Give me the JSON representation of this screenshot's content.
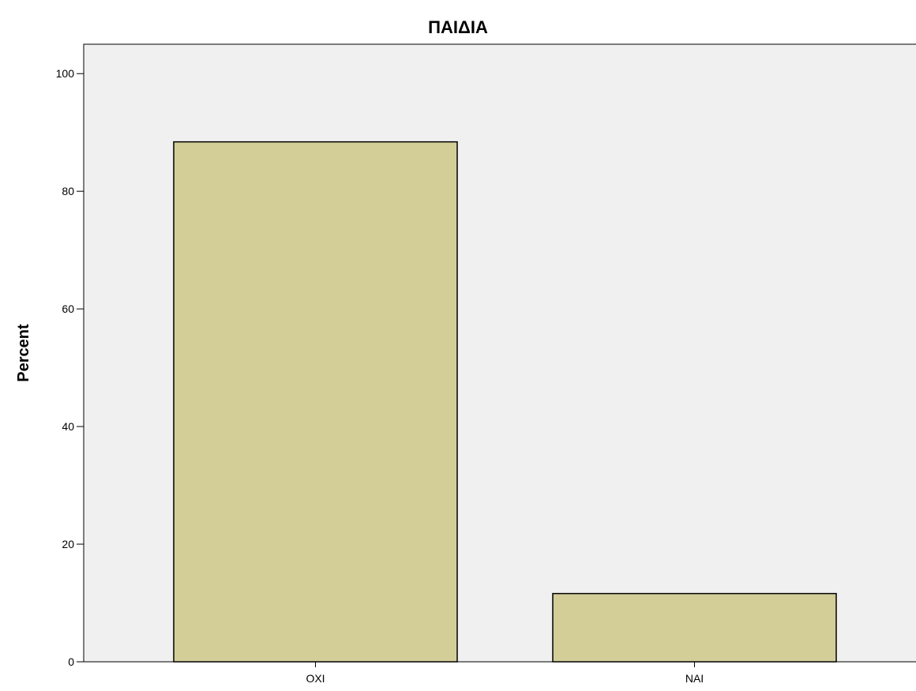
{
  "chart_data": {
    "type": "bar",
    "title": "ΠΑΙΔΙΑ",
    "xlabel": "",
    "ylabel": "Percent",
    "categories": [
      "OXI",
      "NAI"
    ],
    "values": [
      88.4,
      11.6
    ],
    "ylim": [
      0,
      105
    ],
    "yticks": [
      0,
      20,
      40,
      60,
      80,
      100
    ],
    "grid": false,
    "legend": "none",
    "colors": {
      "bar_fill": "#d3cd98",
      "bar_stroke": "#000000",
      "plot_background": "#f0f0f0",
      "axis": "#000000"
    }
  }
}
